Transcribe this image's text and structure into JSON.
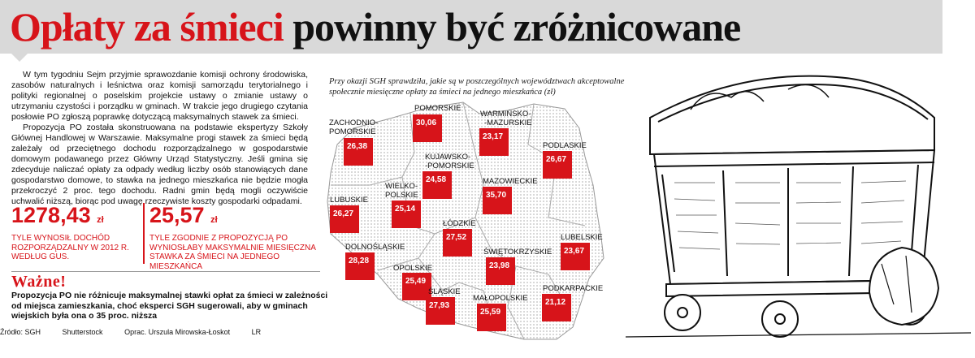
{
  "title": {
    "red": "Opłaty za śmieci",
    "black": "powinny być zróżnicowane"
  },
  "article": {
    "paragraphs": [
      "W tym tygodniu Sejm przyjmie sprawozdanie komisji ochrony środowiska, zasobów naturalnych i leśnictwa oraz komisji samorządu terytorialnego i polityki regionalnej o poselskim projekcie ustawy o zmianie ustawy o utrzymaniu czystości i porządku w gminach. W trakcie jego drugiego czytania posłowie PO zgłoszą poprawkę dotyczącą maksymalnych stawek za śmieci.",
      "Propozycja PO została skonstruowana na podstawie ekspertyzy Szkoły Głównej Handlowej w Warszawie. Maksymalne progi stawek za śmieci będą zależały od przeciętnego dochodu rozporządzalnego w gospodarstwie domowym podawanego przez Główny Urząd Statystyczny. Jeśli gmina się zdecyduje naliczać opłaty za odpady według liczby osób stanowiących dane gospodarstwo domowe, to stawka na jednego mieszkańca nie będzie mogła przekroczyć 2 proc. tego dochodu. Radni gmin będą mogli oczywiście uchwalić niższą, biorąc pod uwagę rzeczywiste koszty gospodarki odpadami."
    ]
  },
  "stats": [
    {
      "value": "1278,43",
      "unit": "zł",
      "caption": "Tyle wynosił dochód rozporządzalny w 2012 r. według GUS."
    },
    {
      "value": "25,57",
      "unit": "zł",
      "caption": "Tyle zgodnie z propozycją PO wyniosłaby maksymalnie miesięczna stawka za śmieci na jednego mieszkańca"
    }
  ],
  "wazne": {
    "heading": "Ważne!",
    "text": "Propozycja PO nie różnicuje maksymalnej stawki opłat za śmieci w zależności od miejsca zamieszkania, choć eksperci SGH sugerowali, aby w gminach wiejskich była ona o 35 proc. niższa"
  },
  "source": {
    "source": "Źródło: SGH",
    "photo": "Shutterstock",
    "author": "Oprac. Urszula Mirowska-Łoskot",
    "initials": "LR"
  },
  "map": {
    "caption": "Przy okazji SGH sprawdziła, jakie są w poszczególnych województwach akceptowalne społecznie miesięczne opłaty za śmieci na jednego mieszkańca (zł)",
    "regions": {
      "pomorskie": {
        "name": "POMORSKIE",
        "value": "30,06"
      },
      "zachodniopomorskie": {
        "name1": "ZACHODNIO-",
        "name2": "POMORSKIE",
        "value": "26,38"
      },
      "warminsko": {
        "name1": "WARMIŃSKO-",
        "name2": "-MAZURSKIE",
        "value": "23,17"
      },
      "podlaskie": {
        "name": "PODLASKIE",
        "value": "26,67"
      },
      "kujawsko": {
        "name1": "KUJAWSKO-",
        "name2": "-POMORSKIE",
        "value": "24,58"
      },
      "mazowieckie": {
        "name": "MAZOWIECKIE",
        "value": "35,70"
      },
      "lubuskie": {
        "name": "LUBUSKIE",
        "value": "26,27"
      },
      "wielkopolskie": {
        "name1": "WIELKO-",
        "name2": "POLSKIE",
        "value": "25,14"
      },
      "lodzkie": {
        "name": "ŁÓDZKIE",
        "value": "27,52"
      },
      "lubelskie": {
        "name": "LUBELSKIE",
        "value": "23,67"
      },
      "dolnoslaskie": {
        "name": "DOLNOŚLĄSKIE",
        "value": "28,28"
      },
      "swietokrzyskie": {
        "name": "ŚWIĘTOKRZYSKIE",
        "value": "23,98"
      },
      "opolskie": {
        "name": "OPOLSKIE",
        "value": "25,49"
      },
      "slaskie": {
        "name": "ŚLĄSKIE",
        "value": "27,93"
      },
      "malopolskie": {
        "name": "MAŁOPOLSKIE",
        "value": "25,59"
      },
      "podkarpackie": {
        "name": "PODKARPACKIE",
        "value": "21,12"
      }
    }
  },
  "colors": {
    "accent": "#d7141a",
    "title_bar": "#d9d9d9"
  },
  "icons": {
    "illustration": "waste-container-icon"
  }
}
